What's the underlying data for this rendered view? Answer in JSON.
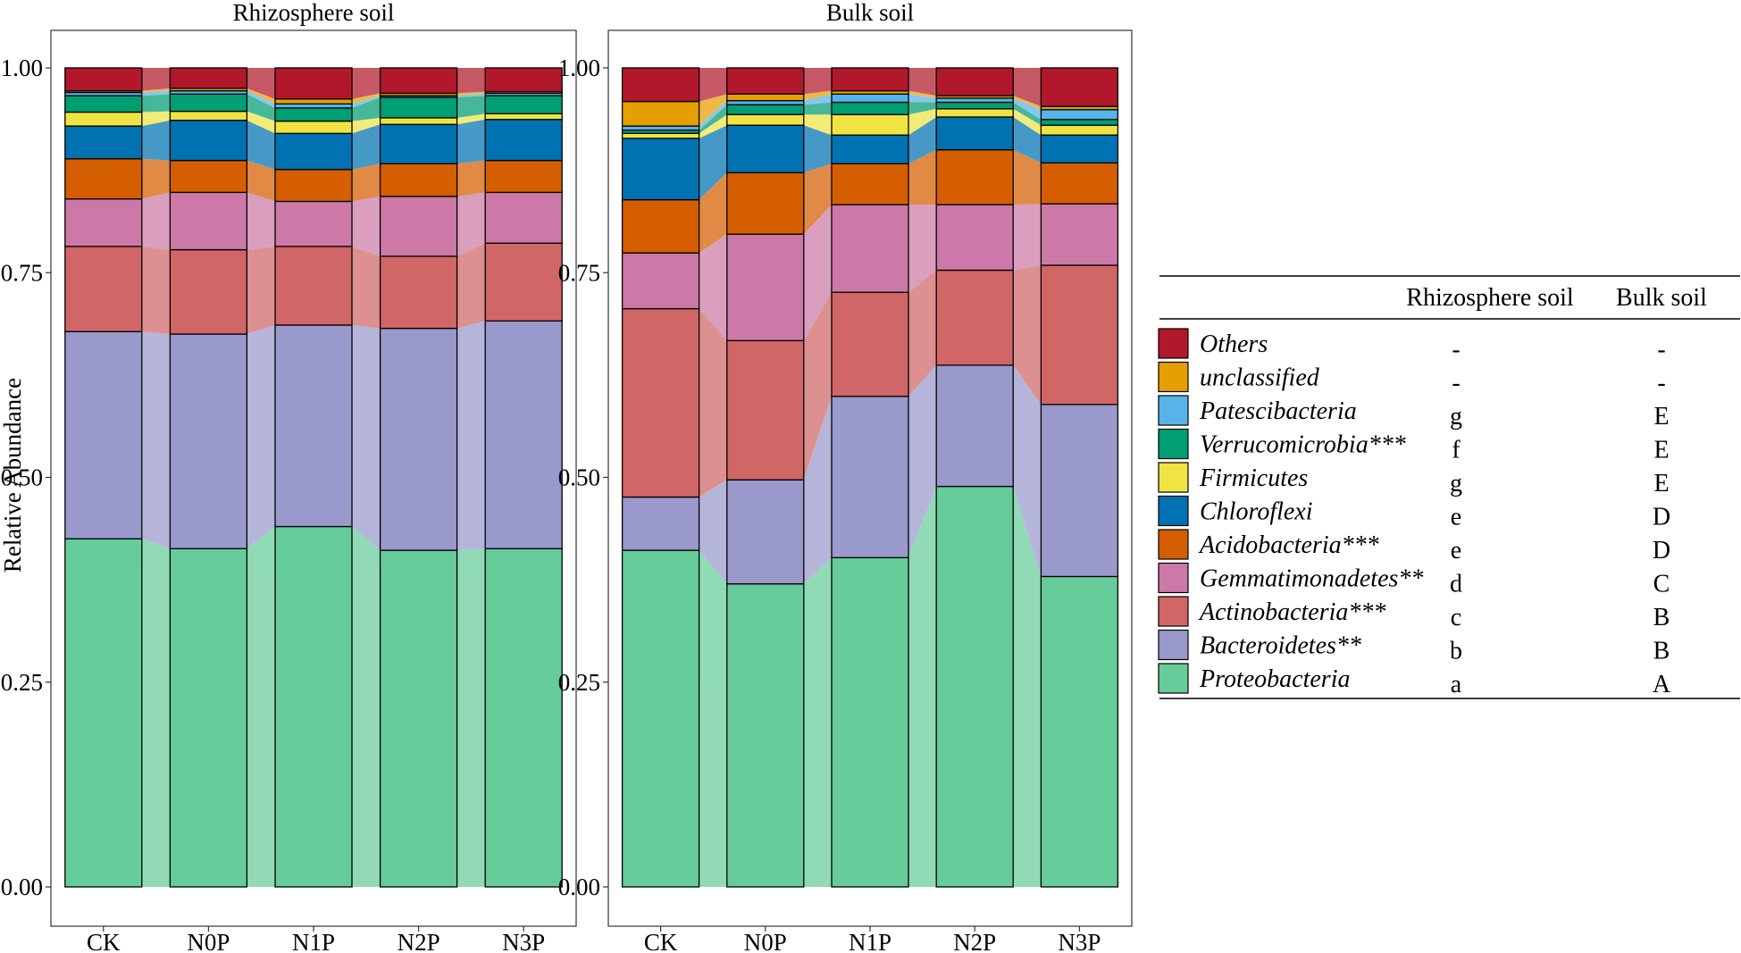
{
  "chart_data": {
    "type": "bar",
    "subtype": "stacked-100",
    "ylabel": "Relative Abundance",
    "ylim": [
      0,
      1
    ],
    "yticks": [
      "0.00",
      "0.25",
      "0.50",
      "0.75",
      "1.00"
    ],
    "categories": [
      "CK",
      "N0P",
      "N1P",
      "N2P",
      "N3P"
    ],
    "stack_order": [
      "Proteobacteria",
      "Bacteroidetes",
      "Actinobacteria",
      "Gemmatimonadetes",
      "Acidobacteria",
      "Chloroflexi",
      "Firmicutes",
      "Verrucomicrobia",
      "Patescibacteria",
      "unclassified",
      "Others"
    ],
    "colors": {
      "Proteobacteria": "#66CC99",
      "Bacteroidetes": "#9999CC",
      "Actinobacteria": "#D06666",
      "Gemmatimonadetes": "#CC79A7",
      "Acidobacteria": "#D55E00",
      "Chloroflexi": "#0072B2",
      "Firmicutes": "#F0E442",
      "Verrucomicrobia": "#009E73",
      "Patescibacteria": "#56B4E9",
      "unclassified": "#E69F00",
      "Others": "#B2182B"
    },
    "panels": [
      {
        "title": "Rhizosphere soil",
        "series": [
          {
            "name": "Proteobacteria",
            "values": [
              0.425,
              0.413,
              0.44,
              0.411,
              0.413
            ]
          },
          {
            "name": "Bacteroidetes",
            "values": [
              0.253,
              0.262,
              0.246,
              0.271,
              0.278
            ]
          },
          {
            "name": "Actinobacteria",
            "values": [
              0.104,
              0.103,
              0.096,
              0.088,
              0.095
            ]
          },
          {
            "name": "Gemmatimonadetes",
            "values": [
              0.058,
              0.07,
              0.055,
              0.073,
              0.062
            ]
          },
          {
            "name": "Acidobacteria",
            "values": [
              0.049,
              0.039,
              0.039,
              0.04,
              0.039
            ]
          },
          {
            "name": "Chloroflexi",
            "values": [
              0.04,
              0.049,
              0.044,
              0.048,
              0.05
            ]
          },
          {
            "name": "Firmicutes",
            "values": [
              0.017,
              0.011,
              0.015,
              0.008,
              0.007
            ]
          },
          {
            "name": "Verrucomicrobia",
            "values": [
              0.02,
              0.021,
              0.016,
              0.025,
              0.022
            ]
          },
          {
            "name": "Patescibacteria",
            "values": [
              0.004,
              0.004,
              0.005,
              0.002,
              0.003
            ]
          },
          {
            "name": "unclassified",
            "values": [
              0.002,
              0.003,
              0.006,
              0.003,
              0.002
            ]
          },
          {
            "name": "Others",
            "values": [
              0.028,
              0.025,
              0.038,
              0.031,
              0.029
            ]
          }
        ]
      },
      {
        "title": "Bulk soil",
        "series": [
          {
            "name": "Proteobacteria",
            "values": [
              0.411,
              0.37,
              0.402,
              0.489,
              0.379
            ]
          },
          {
            "name": "Bacteroidetes",
            "values": [
              0.065,
              0.127,
              0.197,
              0.148,
              0.21
            ]
          },
          {
            "name": "Actinobacteria",
            "values": [
              0.23,
              0.17,
              0.127,
              0.116,
              0.17
            ]
          },
          {
            "name": "Gemmatimonadetes",
            "values": [
              0.068,
              0.13,
              0.107,
              0.08,
              0.075
            ]
          },
          {
            "name": "Acidobacteria",
            "values": [
              0.065,
              0.075,
              0.05,
              0.067,
              0.05
            ]
          },
          {
            "name": "Chloroflexi",
            "values": [
              0.075,
              0.058,
              0.035,
              0.04,
              0.034
            ]
          },
          {
            "name": "Firmicutes",
            "values": [
              0.006,
              0.013,
              0.025,
              0.01,
              0.012
            ]
          },
          {
            "name": "Verrucomicrobia",
            "values": [
              0.004,
              0.012,
              0.015,
              0.008,
              0.007
            ]
          },
          {
            "name": "Patescibacteria",
            "values": [
              0.005,
              0.005,
              0.01,
              0.005,
              0.012
            ]
          },
          {
            "name": "unclassified",
            "values": [
              0.03,
              0.008,
              0.004,
              0.003,
              0.004
            ]
          },
          {
            "name": "Others",
            "values": [
              0.041,
              0.032,
              0.028,
              0.034,
              0.047
            ]
          }
        ]
      }
    ],
    "legend": {
      "position": "right",
      "column_headers": [
        "Rhizosphere soil",
        "Bulk soil"
      ],
      "rows": [
        {
          "key": "Others",
          "label": "Others",
          "rhizosphere": "-",
          "bulk": "-"
        },
        {
          "key": "unclassified",
          "label": "unclassified",
          "rhizosphere": "-",
          "bulk": "-"
        },
        {
          "key": "Patescibacteria",
          "label": "Patescibacteria",
          "rhizosphere": "g",
          "bulk": "E"
        },
        {
          "key": "Verrucomicrobia",
          "label": "Verrucomicrobia***",
          "rhizosphere": "f",
          "bulk": "E"
        },
        {
          "key": "Firmicutes",
          "label": "Firmicutes",
          "rhizosphere": "g",
          "bulk": "E"
        },
        {
          "key": "Chloroflexi",
          "label": "Chloroflexi",
          "rhizosphere": "e",
          "bulk": "D"
        },
        {
          "key": "Acidobacteria",
          "label": "Acidobacteria***",
          "rhizosphere": "e",
          "bulk": "D"
        },
        {
          "key": "Gemmatimonadetes",
          "label": "Gemmatimonadetes**",
          "rhizosphere": "d",
          "bulk": "C"
        },
        {
          "key": "Actinobacteria",
          "label": "Actinobacteria***",
          "rhizosphere": "c",
          "bulk": "B"
        },
        {
          "key": "Bacteroidetes",
          "label": "Bacteroidetes**",
          "rhizosphere": "b",
          "bulk": "B"
        },
        {
          "key": "Proteobacteria",
          "label": "Proteobacteria",
          "rhizosphere": "a",
          "bulk": "A"
        }
      ]
    }
  }
}
